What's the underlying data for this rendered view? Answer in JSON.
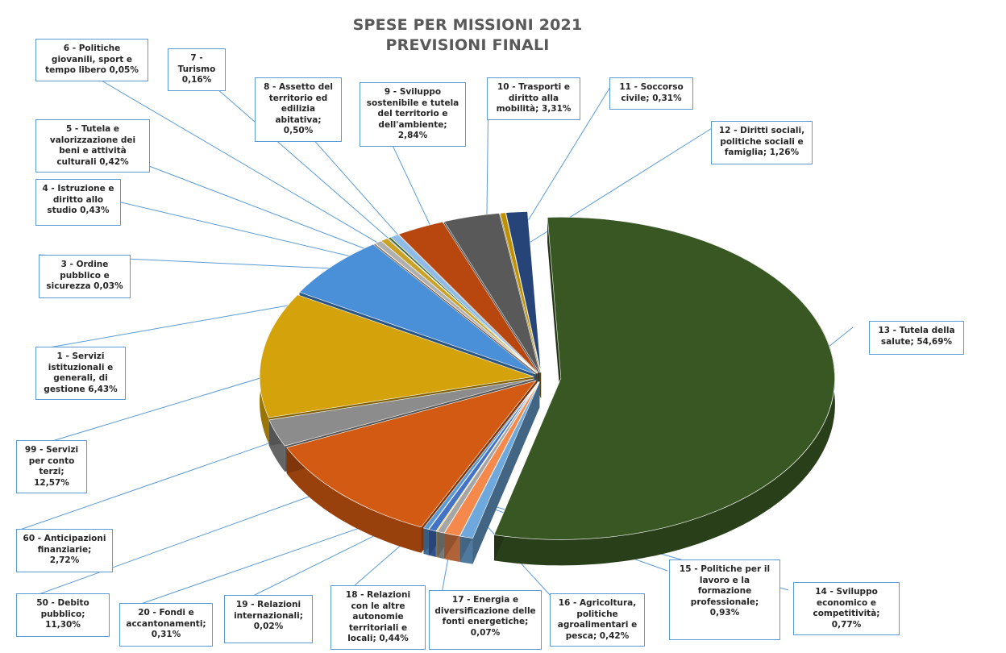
{
  "chart_data": {
    "type": "pie",
    "title": "SPESE PER MISSIONI 2021",
    "subtitle": "PREVISIONI FINALI",
    "slices": [
      {
        "label": "13 - Tutela della salute; 54,69%",
        "value": 54.69,
        "color": "#385723"
      },
      {
        "label": "14 - Sviluppo economico e competitività; 0,77%",
        "value": 0.77,
        "color": "#6fa8dc"
      },
      {
        "label": "15 - Politiche per il lavoro e la formazione professionale; 0,93%",
        "value": 0.93,
        "color": "#f4894b"
      },
      {
        "label": "16 - Agricoltura, politiche agroalimentari e pesca; 0,42%",
        "value": 0.42,
        "color": "#a5a5a5"
      },
      {
        "label": "17 - Energia e diversificazione delle fonti energetiche; 0,07%",
        "value": 0.07,
        "color": "#ffc000"
      },
      {
        "label": "18 - Relazioni con le altre autonomie territoriali e locali; 0,44%",
        "value": 0.44,
        "color": "#4472c4"
      },
      {
        "label": "19 - Relazioni internazionali; 0,02%",
        "value": 0.02,
        "color": "#70ad47"
      },
      {
        "label": "20 - Fondi e accantonamenti; 0,31%",
        "value": 0.31,
        "color": "#5b9bd5"
      },
      {
        "label": "50 - Debito pubblico; 11,30%",
        "value": 11.3,
        "color": "#d35a12"
      },
      {
        "label": "60 - Anticipazioni finanziarie; 2,72%",
        "value": 2.72,
        "color": "#8c8c8c"
      },
      {
        "label": "99 - Servizi per conto terzi; 12,57%",
        "value": 12.57,
        "color": "#d4a20a"
      },
      {
        "label": "1 - Servizi istituzionali e generali, di gestione 6,43%",
        "value": 6.43,
        "color": "#4a90d9"
      },
      {
        "label": "3 - Ordine pubblico e sicurezza 0,03%",
        "value": 0.03,
        "color": "#9e480e"
      },
      {
        "label": "4 - Istruzione e diritto allo studio 0,43%",
        "value": 0.43,
        "color": "#b0b0b0"
      },
      {
        "label": "5 - Tutela e valorizzazione dei beni e attività culturali 0,42%",
        "value": 0.42,
        "color": "#c9a227"
      },
      {
        "label": "6 - Politiche giovanili, sport e tempo libero 0,05%",
        "value": 0.05,
        "color": "#2f5597"
      },
      {
        "label": "7 - Turismo 0,16%",
        "value": 0.16,
        "color": "#43682b"
      },
      {
        "label": "8 - Assetto del territorio ed edilizia abitativa; 0,50%",
        "value": 0.5,
        "color": "#8fbce6"
      },
      {
        "label": "9 - Sviluppo sostenibile e tutela del territorio e dell'ambiente; 2,84%",
        "value": 2.84,
        "color": "#b8470f"
      },
      {
        "label": "10 - Trasporti e diritto alla mobilità; 3,31%",
        "value": 3.31,
        "color": "#595959"
      },
      {
        "label": "11 - Soccorso civile; 0,31%",
        "value": 0.31,
        "color": "#bf9000"
      },
      {
        "label": "12 - Diritti sociali, politiche sociali e famiglia; 1,26%",
        "value": 1.26,
        "color": "#264478"
      }
    ],
    "legend": "none",
    "data_labels": "outside-with-leader-lines"
  }
}
